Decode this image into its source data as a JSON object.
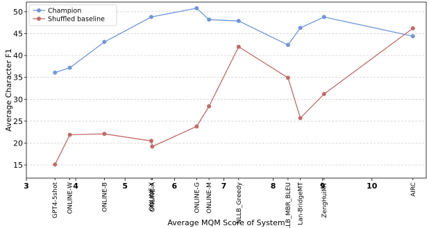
{
  "chart_data": {
    "type": "line",
    "xlabel": "Average MQM Score of System",
    "ylabel": "Average Character F1",
    "xlim": [
      3,
      11.1
    ],
    "ylim": [
      12,
      52.2
    ],
    "xticks": [
      3,
      4,
      5,
      6,
      7,
      8,
      9,
      10
    ],
    "yticks": [
      15,
      20,
      25,
      30,
      35,
      40,
      45,
      50
    ],
    "grid": "horizontal-dashed",
    "legend_position": "top-left",
    "systems": [
      {
        "name": "GPT4-5shot",
        "x": 3.58
      },
      {
        "name": "ONLINE-W",
        "x": 3.88
      },
      {
        "name": "ONLINE-B",
        "x": 4.58
      },
      {
        "name": "ONLINE-Y",
        "x": 5.53
      },
      {
        "name": "ONLINE-A",
        "x": 5.55
      },
      {
        "name": "ONLINE-G",
        "x": 6.45
      },
      {
        "name": "ONLINE-M",
        "x": 6.7
      },
      {
        "name": "NLLB_Greedy",
        "x": 7.3
      },
      {
        "name": "NLLB_MBR_BLEU",
        "x": 8.3
      },
      {
        "name": "Lan-BridgeMT",
        "x": 8.55
      },
      {
        "name": "ZengHuiMT",
        "x": 9.03
      },
      {
        "name": "AIRC",
        "x": 10.83
      }
    ],
    "series": [
      {
        "name": "Champion",
        "color": "#6f96dc",
        "points": [
          {
            "x": 3.58,
            "y": 36.1
          },
          {
            "x": 3.88,
            "y": 37.2
          },
          {
            "x": 4.58,
            "y": 43.1
          },
          {
            "x": 5.53,
            "y": 48.8
          },
          {
            "x": 6.45,
            "y": 50.8
          },
          {
            "x": 6.7,
            "y": 48.2
          },
          {
            "x": 7.3,
            "y": 47.9
          },
          {
            "x": 8.3,
            "y": 42.4
          },
          {
            "x": 8.55,
            "y": 46.3
          },
          {
            "x": 9.03,
            "y": 48.8
          },
          {
            "x": 10.83,
            "y": 44.4
          }
        ]
      },
      {
        "name": "Shuffled baseline",
        "color": "#c26a66",
        "points": [
          {
            "x": 3.58,
            "y": 15.1
          },
          {
            "x": 3.88,
            "y": 21.9
          },
          {
            "x": 4.58,
            "y": 22.1
          },
          {
            "x": 5.53,
            "y": 20.5
          },
          {
            "x": 5.55,
            "y": 19.2
          },
          {
            "x": 6.45,
            "y": 23.8
          },
          {
            "x": 6.7,
            "y": 28.4
          },
          {
            "x": 7.3,
            "y": 42.0
          },
          {
            "x": 8.3,
            "y": 34.9
          },
          {
            "x": 8.55,
            "y": 25.7
          },
          {
            "x": 9.03,
            "y": 31.2
          },
          {
            "x": 10.83,
            "y": 46.2
          }
        ]
      }
    ]
  }
}
